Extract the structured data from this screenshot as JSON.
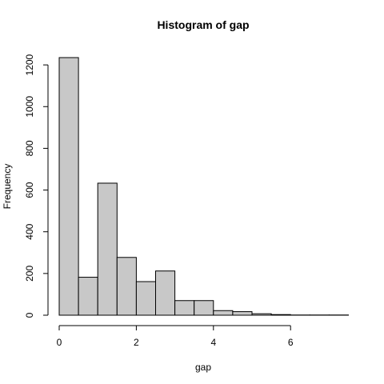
{
  "chart_data": {
    "type": "bar",
    "title": "Histogram of gap",
    "xlabel": "gap",
    "ylabel": "Frequency",
    "bin_width": 0.5,
    "bins": [
      {
        "from": 0.0,
        "to": 0.5,
        "count": 1235
      },
      {
        "from": 0.5,
        "to": 1.0,
        "count": 182
      },
      {
        "from": 1.0,
        "to": 1.5,
        "count": 633
      },
      {
        "from": 1.5,
        "to": 2.0,
        "count": 277
      },
      {
        "from": 2.0,
        "to": 2.5,
        "count": 161
      },
      {
        "from": 2.5,
        "to": 3.0,
        "count": 212
      },
      {
        "from": 3.0,
        "to": 3.5,
        "count": 70
      },
      {
        "from": 3.5,
        "to": 4.0,
        "count": 70
      },
      {
        "from": 4.0,
        "to": 4.5,
        "count": 22
      },
      {
        "from": 4.5,
        "to": 5.0,
        "count": 17
      },
      {
        "from": 5.0,
        "to": 5.5,
        "count": 7
      },
      {
        "from": 5.5,
        "to": 6.0,
        "count": 3
      },
      {
        "from": 6.0,
        "to": 6.5,
        "count": 1
      },
      {
        "from": 6.5,
        "to": 7.0,
        "count": 1
      },
      {
        "from": 7.0,
        "to": 7.5,
        "count": 1
      }
    ],
    "xlim": [
      0,
      7.5
    ],
    "ylim": [
      0,
      1235
    ],
    "x_ticks": [
      0,
      2,
      4,
      6
    ],
    "y_ticks": [
      0,
      200,
      400,
      600,
      800,
      1000,
      1200
    ],
    "grid": false,
    "colors": {
      "bar_fill": "#c8c8c8",
      "bar_stroke": "#000000"
    }
  }
}
